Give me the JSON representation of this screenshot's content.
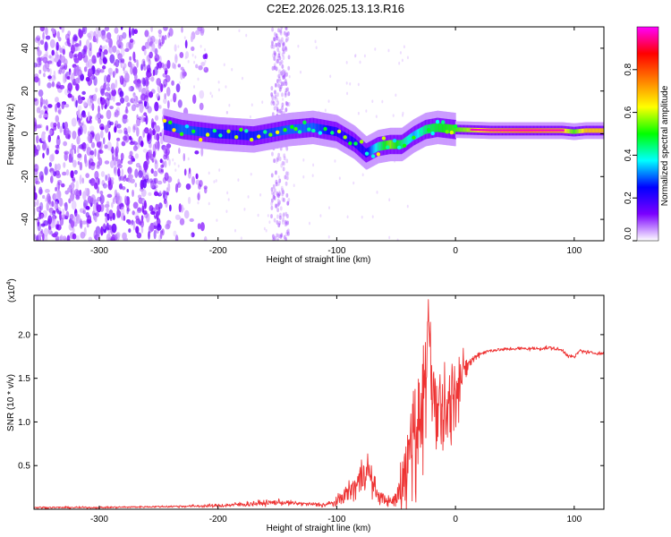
{
  "title": "C2E2.2026.025.13.13.R16",
  "chart_data": [
    {
      "type": "heatmap",
      "xlabel": "Height of straight line (km)",
      "ylabel": "Frequency (Hz)",
      "xlim": [
        -355,
        125
      ],
      "ylim": [
        -50,
        50
      ],
      "xticks": [
        -300,
        -200,
        -100,
        0,
        100
      ],
      "yticks": [
        -40,
        -20,
        0,
        20,
        40
      ],
      "colorbar": {
        "label": "Normalized spectral amplitude",
        "range": [
          0,
          1
        ],
        "ticks": [
          0.0,
          0.2,
          0.4,
          0.6,
          0.8
        ],
        "tick_labels": [
          "0.0",
          "0.2",
          "0.4",
          "0.6",
          "0.8"
        ],
        "colors": [
          "#ffffff",
          "#7b00ff",
          "#0000ff",
          "#00ffff",
          "#00ff00",
          "#ffff00",
          "#ff7f00",
          "#ff0000",
          "#ff00ff"
        ]
      },
      "ridge": {
        "description_x": [
          -245,
          -230,
          -200,
          -170,
          -140,
          -120,
          -100,
          -85,
          -75,
          -65,
          -55,
          -45,
          -35,
          -25,
          -15,
          0,
          30,
          60,
          90,
          100,
          110,
          125
        ],
        "frequency_hz": [
          4,
          2,
          0,
          -1,
          2,
          3,
          1,
          -4,
          -9,
          -6,
          -5,
          -5,
          -1,
          2,
          3,
          2,
          1.5,
          1.5,
          1.5,
          1,
          1.5,
          1.5
        ],
        "amplitude": [
          0.35,
          0.4,
          0.35,
          0.35,
          0.4,
          0.4,
          0.3,
          0.3,
          0.3,
          0.55,
          0.75,
          0.6,
          0.45,
          0.6,
          0.65,
          0.7,
          0.9,
          0.95,
          0.9,
          0.7,
          0.9,
          0.9
        ]
      },
      "noise_region_x": [
        -355,
        -240
      ],
      "noise_band_x": [
        -155,
        -140
      ]
    },
    {
      "type": "line",
      "xlabel": "Height of straight line (km)",
      "ylabel": "SNR (10 * v/v)",
      "y_multiplier_label": "(x10",
      "y_multiplier_exponent": "4",
      "y_multiplier_close": ")",
      "xlim": [
        -355,
        125
      ],
      "ylim": [
        0,
        2.45
      ],
      "xticks": [
        -300,
        -200,
        -100,
        0,
        100
      ],
      "yticks": [
        0.5,
        1.0,
        1.5,
        2.0
      ],
      "ytick_labels": [
        "0.5",
        "1.0",
        "1.5",
        "2.0"
      ],
      "series": [
        {
          "name": "SNR",
          "color": "#ee3333",
          "x": [
            -355,
            -300,
            -250,
            -200,
            -175,
            -150,
            -125,
            -110,
            -100,
            -95,
            -90,
            -85,
            -80,
            -75,
            -70,
            -65,
            -60,
            -55,
            -50,
            -45,
            -40,
            -35,
            -30,
            -25,
            -22,
            -20,
            -15,
            -10,
            -5,
            0,
            5,
            10,
            15,
            20,
            25,
            30,
            40,
            50,
            60,
            70,
            80,
            90,
            95,
            100,
            105,
            110,
            115,
            120,
            125
          ],
          "y": [
            0.02,
            0.02,
            0.03,
            0.04,
            0.06,
            0.08,
            0.06,
            0.05,
            0.08,
            0.15,
            0.2,
            0.25,
            0.35,
            0.5,
            0.3,
            0.15,
            0.12,
            0.08,
            0.1,
            0.3,
            0.6,
            0.8,
            1.0,
            1.4,
            2.0,
            1.1,
            1.15,
            1.2,
            1.25,
            1.3,
            1.5,
            1.65,
            1.72,
            1.78,
            1.8,
            1.82,
            1.83,
            1.84,
            1.84,
            1.84,
            1.85,
            1.82,
            1.76,
            1.74,
            1.82,
            1.8,
            1.79,
            1.79,
            1.78
          ],
          "jitter": [
            0.01,
            0.01,
            0.01,
            0.02,
            0.03,
            0.03,
            0.02,
            0.03,
            0.05,
            0.08,
            0.12,
            0.15,
            0.2,
            0.25,
            0.15,
            0.08,
            0.06,
            0.05,
            0.15,
            0.35,
            0.5,
            0.6,
            0.6,
            0.7,
            0.5,
            0.6,
            0.6,
            0.55,
            0.5,
            0.45,
            0.25,
            0.1,
            0.04,
            0.03,
            0.02,
            0.02,
            0.02,
            0.02,
            0.02,
            0.02,
            0.02,
            0.02,
            0.02,
            0.02,
            0.02,
            0.02,
            0.02,
            0.02,
            0.02
          ]
        }
      ]
    }
  ]
}
